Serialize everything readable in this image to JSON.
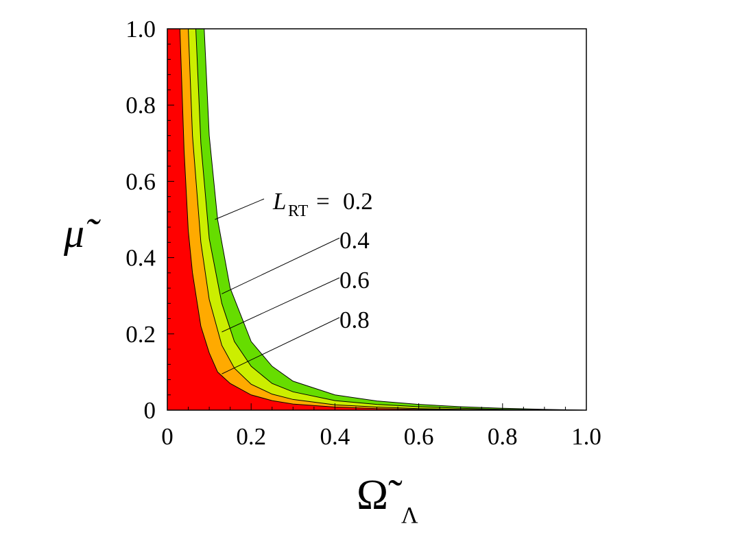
{
  "chart_data": {
    "type": "area",
    "title": "",
    "xlabel": "Ω̃",
    "xlabel_subscript": "Λ",
    "ylabel": "μ̃",
    "xlim": [
      0,
      1.0
    ],
    "ylim": [
      0,
      1.0
    ],
    "x_ticks": [
      "0",
      "0.2",
      "0.4",
      "0.6",
      "0.8",
      "1.0"
    ],
    "y_ticks": [
      "0",
      "0.2",
      "0.4",
      "0.6",
      "0.8",
      "1.0"
    ],
    "grid": false,
    "legend": "none",
    "label_prefix": "L",
    "label_prefix_subscript": "RT",
    "label_equals": "= ",
    "series": [
      {
        "name": "0.2",
        "color": "#66dd00",
        "points": [
          [
            0.088,
            1.0
          ],
          [
            0.1,
            0.72
          ],
          [
            0.12,
            0.5
          ],
          [
            0.15,
            0.32
          ],
          [
            0.2,
            0.18
          ],
          [
            0.25,
            0.115
          ],
          [
            0.3,
            0.076
          ],
          [
            0.4,
            0.04
          ],
          [
            0.5,
            0.024
          ],
          [
            0.6,
            0.015
          ],
          [
            0.7,
            0.009
          ],
          [
            0.8,
            0.005
          ],
          [
            0.9,
            0.002
          ],
          [
            1.0,
            0.0
          ]
        ]
      },
      {
        "name": "0.4",
        "color": "#ccee00",
        "points": [
          [
            0.068,
            1.0
          ],
          [
            0.08,
            0.7
          ],
          [
            0.1,
            0.45
          ],
          [
            0.13,
            0.28
          ],
          [
            0.16,
            0.18
          ],
          [
            0.2,
            0.115
          ],
          [
            0.25,
            0.07
          ],
          [
            0.3,
            0.048
          ],
          [
            0.4,
            0.025
          ],
          [
            0.5,
            0.015
          ],
          [
            0.6,
            0.009
          ],
          [
            0.7,
            0.005
          ],
          [
            0.8,
            0.002
          ],
          [
            0.9,
            0.0005
          ],
          [
            1.0,
            0.0
          ]
        ]
      },
      {
        "name": "0.6",
        "color": "#ffaa00",
        "points": [
          [
            0.05,
            1.0
          ],
          [
            0.06,
            0.72
          ],
          [
            0.08,
            0.44
          ],
          [
            0.1,
            0.29
          ],
          [
            0.13,
            0.17
          ],
          [
            0.16,
            0.11
          ],
          [
            0.2,
            0.068
          ],
          [
            0.25,
            0.042
          ],
          [
            0.3,
            0.028
          ],
          [
            0.4,
            0.014
          ],
          [
            0.5,
            0.008
          ],
          [
            0.6,
            0.004
          ],
          [
            0.7,
            0.002
          ],
          [
            0.8,
            0.0008
          ],
          [
            1.0,
            0.0
          ]
        ]
      },
      {
        "name": "0.8",
        "color": "#ff0000",
        "points": [
          [
            0.0,
            1.0
          ],
          [
            0.0,
            0.0
          ]
        ],
        "fill_to_axes": true
      }
    ],
    "boundaries": [
      {
        "name": "0.8",
        "points": [
          [
            0.03,
            1.0
          ],
          [
            0.04,
            0.68
          ],
          [
            0.05,
            0.47
          ],
          [
            0.06,
            0.36
          ],
          [
            0.08,
            0.22
          ],
          [
            0.1,
            0.15
          ],
          [
            0.12,
            0.1
          ],
          [
            0.15,
            0.07
          ],
          [
            0.2,
            0.04
          ],
          [
            0.25,
            0.025
          ],
          [
            0.3,
            0.016
          ],
          [
            0.4,
            0.008
          ],
          [
            0.5,
            0.004
          ],
          [
            0.6,
            0.002
          ],
          [
            0.8,
            0.0005
          ],
          [
            1.0,
            0.0
          ]
        ]
      }
    ],
    "labels": [
      {
        "text": "0.2",
        "anchor": [
          0.13,
          0.5
        ]
      },
      {
        "text": "0.4",
        "anchor": [
          0.13,
          0.305
        ]
      },
      {
        "text": "0.6",
        "anchor": [
          0.13,
          0.205
        ]
      },
      {
        "text": "0.8",
        "anchor": [
          0.13,
          0.095
        ]
      }
    ]
  }
}
